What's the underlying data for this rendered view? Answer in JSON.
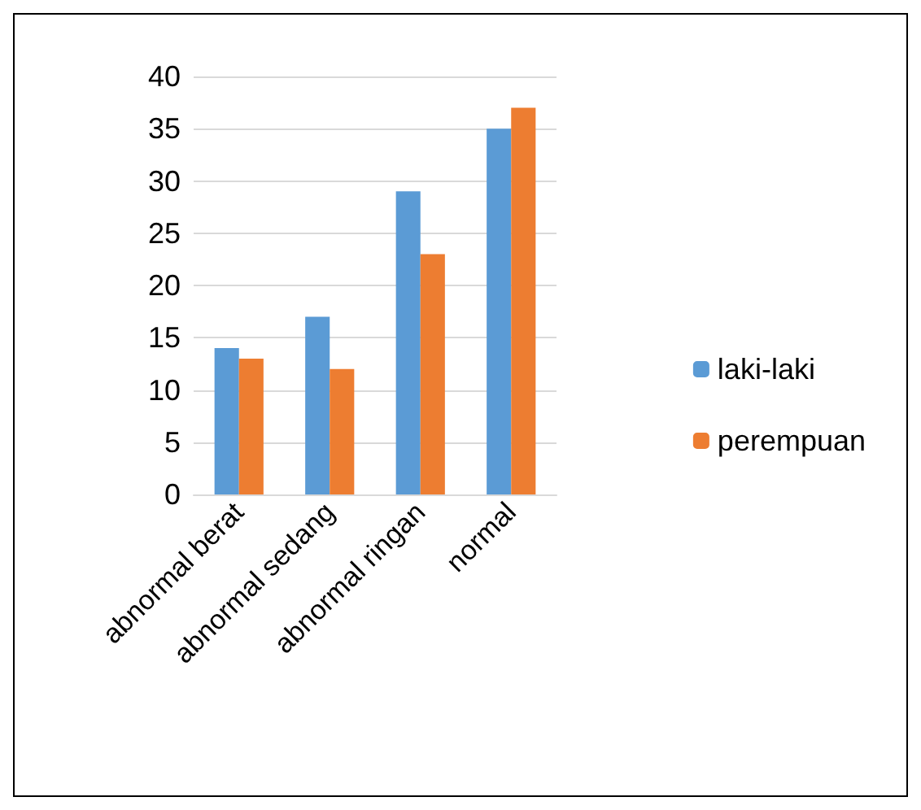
{
  "chart_data": {
    "type": "bar",
    "categories": [
      "abnormal berat",
      "abnormal sedang",
      "abnormal ringan",
      "normal"
    ],
    "series": [
      {
        "name": "laki-laki",
        "color": "#5b9bd5",
        "values": [
          14,
          17,
          29,
          35
        ]
      },
      {
        "name": "perempuan",
        "color": "#ed7d31",
        "values": [
          13,
          12,
          23,
          37
        ]
      }
    ],
    "ylim": [
      0,
      40
    ],
    "yticks": [
      0,
      5,
      10,
      15,
      20,
      25,
      30,
      35,
      40
    ],
    "grid": "y",
    "legend": "right"
  }
}
